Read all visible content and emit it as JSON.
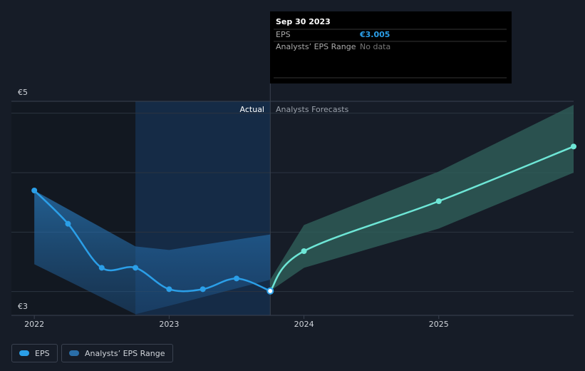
{
  "chart_data": {
    "type": "line",
    "y_axis_labels": [
      "€5",
      "€3"
    ],
    "xlim": [
      2021.83,
      2026.0
    ],
    "xticks": [
      2022,
      2023,
      2024,
      2025
    ],
    "ylim": [
      2.8,
      4.6
    ],
    "yticks": [
      3,
      3.5,
      4,
      4.5
    ],
    "grid": true,
    "divider_labels": [
      "Actual",
      "Analysts Forecasts"
    ],
    "series": [
      {
        "name": "EPS",
        "color": "#2b9fe8",
        "forecast_color": "#6ee6d6",
        "x": [
          2022.0,
          2022.25,
          2022.5,
          2022.75,
          2023.0,
          2023.25,
          2023.5,
          2023.75
        ],
        "values": [
          3.85,
          3.57,
          3.2,
          3.2,
          3.02,
          3.02,
          3.11,
          3.005
        ],
        "forecast": {
          "x": [
            2023.75,
            2024.0,
            2025.0,
            2026.0
          ],
          "values": [
            3.005,
            3.34,
            3.76,
            4.22
          ]
        }
      },
      {
        "name": "Analysts’ EPS Range",
        "color": "#2a6ea8",
        "forecast_color": "#2f5f5a",
        "x": [
          2022.0,
          2022.75,
          2023.0,
          2023.75
        ],
        "low": [
          3.23,
          2.81,
          2.88,
          3.1
        ],
        "high": [
          3.85,
          3.38,
          3.35,
          3.48
        ],
        "forecast": {
          "x": [
            2023.75,
            2024.0,
            2025.0,
            2026.0
          ],
          "low": [
            3.005,
            3.2,
            3.53,
            4.0
          ],
          "high": [
            3.1,
            3.56,
            4.01,
            4.57
          ]
        }
      }
    ],
    "tooltip": {
      "date": "Sep 30 2023",
      "rows": [
        {
          "label": "EPS",
          "value_label": "€3.005"
        },
        {
          "label": "Analysts’ EPS Range",
          "value_label": "No data"
        }
      ]
    }
  }
}
